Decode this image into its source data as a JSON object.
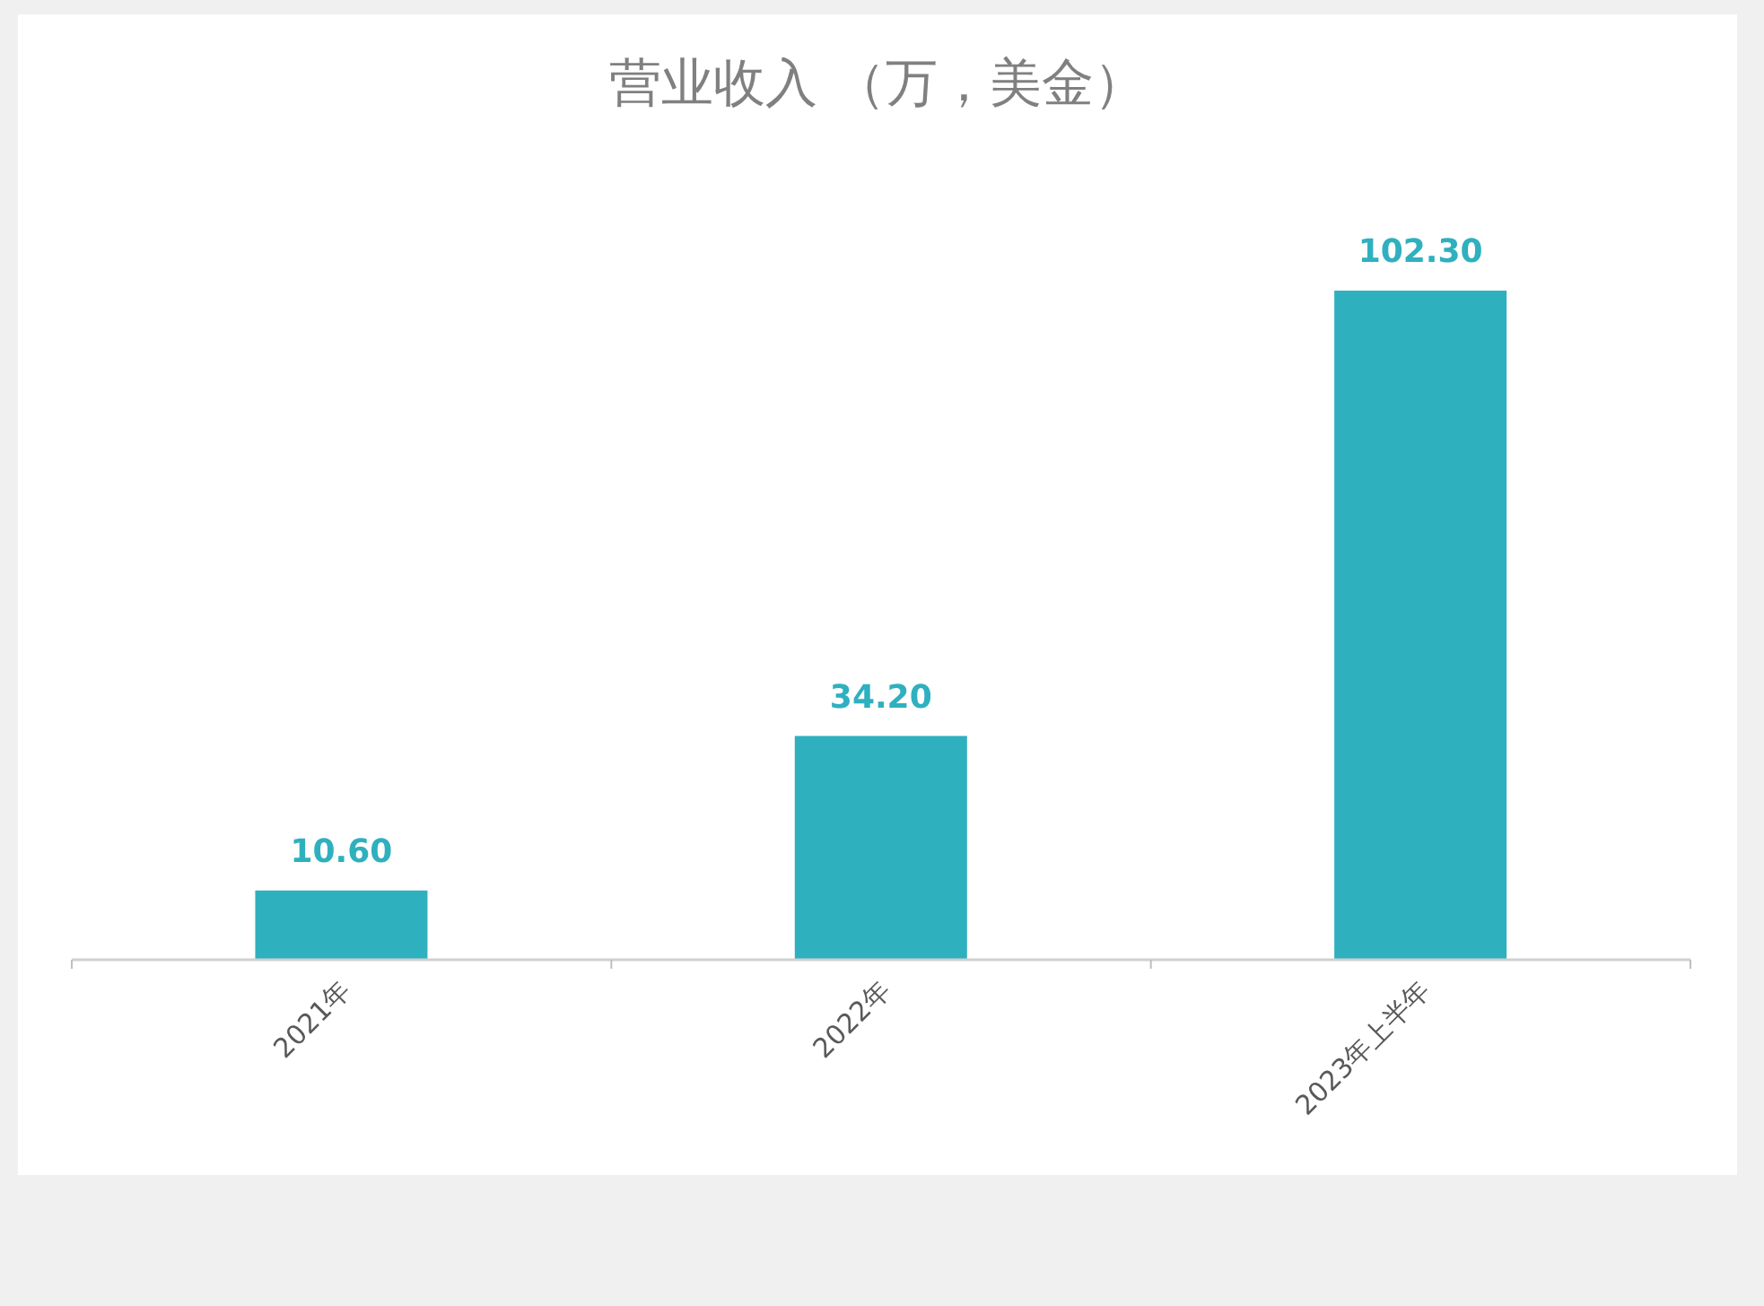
{
  "chart_data": {
    "type": "bar",
    "title": "营业收入 （万，美金）",
    "categories": [
      "2021年",
      "2022年",
      "2023年上半年"
    ],
    "values": [
      10.6,
      34.2,
      102.3
    ],
    "value_labels": [
      "10.60",
      "34.20",
      "102.30"
    ],
    "color": "#2fb0bf"
  }
}
